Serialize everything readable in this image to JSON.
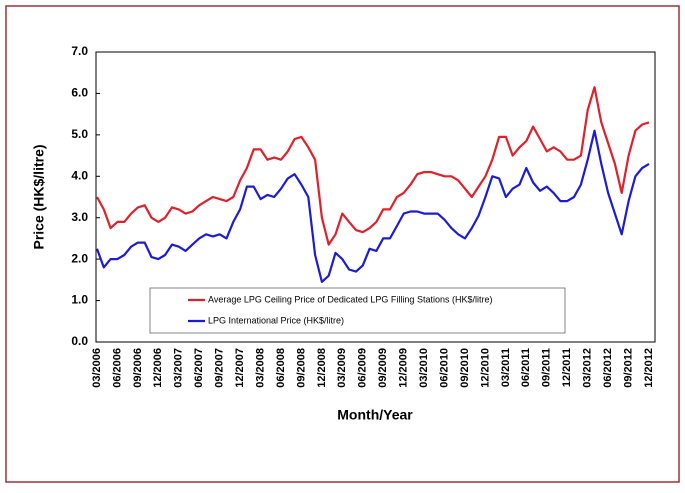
{
  "chart_data": {
    "type": "line",
    "x_label": "Month/Year",
    "y_label": "Price (HK$/litre)",
    "categories": [
      "03/2006",
      null,
      null,
      "06/2006",
      null,
      null,
      "09/2006",
      null,
      null,
      "12/2006",
      null,
      null,
      "03/2007",
      null,
      null,
      "06/2007",
      null,
      null,
      "09/2007",
      null,
      null,
      "12/2007",
      null,
      null,
      "03/2008",
      null,
      null,
      "06/2008",
      null,
      null,
      "09/2008",
      null,
      null,
      "12/2008",
      null,
      null,
      "03/2009",
      null,
      null,
      "06/2009",
      null,
      null,
      "09/2009",
      null,
      null,
      "12/2009",
      null,
      null,
      "03/2010",
      null,
      null,
      "06/2010",
      null,
      null,
      "09/2010",
      null,
      null,
      "12/2010",
      null,
      null,
      "03/2011",
      null,
      null,
      "06/2011",
      null,
      null,
      "09/2011",
      null,
      null,
      "12/2011",
      null,
      null,
      "03/2012",
      null,
      null,
      "06/2012",
      null,
      null,
      "09/2012",
      null,
      null,
      "12/2012"
    ],
    "series": [
      {
        "name": "Average LPG Ceiling Price of Dedicated LPG Filling Stations (HK$/litre)",
        "color": "#e0202a",
        "values": [
          3.5,
          3.2,
          2.75,
          2.9,
          2.9,
          3.1,
          3.25,
          3.3,
          3.0,
          2.9,
          3.0,
          3.25,
          3.2,
          3.1,
          3.15,
          3.3,
          3.4,
          3.5,
          3.45,
          3.4,
          3.5,
          3.9,
          4.2,
          4.65,
          4.65,
          4.4,
          4.45,
          4.4,
          4.6,
          4.9,
          4.95,
          4.7,
          4.4,
          3.0,
          2.35,
          2.6,
          3.1,
          2.9,
          2.7,
          2.65,
          2.75,
          2.9,
          3.2,
          3.2,
          3.5,
          3.6,
          3.8,
          4.05,
          4.1,
          4.1,
          4.05,
          4.0,
          4.0,
          3.9,
          3.7,
          3.5,
          3.75,
          4.0,
          4.4,
          4.95,
          4.95,
          4.5,
          4.7,
          4.85,
          5.2,
          4.9,
          4.6,
          4.7,
          4.6,
          4.4,
          4.4,
          4.5,
          5.6,
          6.15,
          5.3,
          4.8,
          4.3,
          3.6,
          4.5,
          5.1,
          5.25,
          5.3
        ]
      },
      {
        "name": "LPG International Price (HK$/litre)",
        "color": "#1c1cd6",
        "values": [
          2.25,
          1.8,
          2.0,
          2.0,
          2.1,
          2.3,
          2.4,
          2.4,
          2.05,
          2.0,
          2.1,
          2.35,
          2.3,
          2.2,
          2.35,
          2.5,
          2.6,
          2.55,
          2.6,
          2.5,
          2.9,
          3.2,
          3.75,
          3.75,
          3.45,
          3.55,
          3.5,
          3.7,
          3.95,
          4.05,
          3.8,
          3.5,
          2.1,
          1.45,
          1.6,
          2.15,
          2.0,
          1.75,
          1.7,
          1.85,
          2.25,
          2.2,
          2.5,
          2.5,
          2.8,
          3.1,
          3.15,
          3.15,
          3.1,
          3.1,
          3.1,
          2.95,
          2.75,
          2.6,
          2.5,
          2.75,
          3.05,
          3.5,
          4.0,
          3.95,
          3.5,
          3.7,
          3.8,
          4.2,
          3.85,
          3.65,
          3.75,
          3.6,
          3.4,
          3.4,
          3.5,
          3.8,
          4.4,
          5.1,
          4.3,
          3.6,
          3.1,
          2.6,
          3.4,
          4.0,
          4.2,
          4.3
        ]
      }
    ],
    "ylim": [
      0,
      7
    ],
    "yticks": [
      {
        "value": 0,
        "label": "0.0"
      },
      {
        "value": 1,
        "label": "1.0"
      },
      {
        "value": 2,
        "label": "2.0"
      },
      {
        "value": 3,
        "label": "3.0"
      },
      {
        "value": 4,
        "label": "4.0"
      },
      {
        "value": 5,
        "label": "5.0"
      },
      {
        "value": 6,
        "label": "6.0"
      },
      {
        "value": 7,
        "label": "7.0"
      }
    ],
    "grid": false,
    "legend": "bottom"
  }
}
